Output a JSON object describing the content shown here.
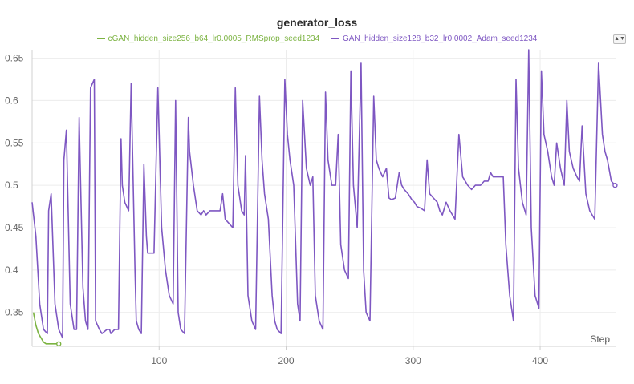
{
  "chart_data": {
    "type": "line",
    "title": "generator_loss",
    "xlabel": "Step",
    "ylabel": "",
    "xlim": [
      0,
      460
    ],
    "ylim": [
      0.31,
      0.66
    ],
    "xticks": [
      100,
      200,
      300,
      400
    ],
    "yticks": [
      0.35,
      0.4,
      0.45,
      0.5,
      0.55,
      0.6,
      0.65
    ],
    "grid": true,
    "legend_position": "top",
    "series": [
      {
        "name": "cGAN_hidden_size256_b64_lr0.0005_RMSprop_seed1234",
        "color": "#7cb342",
        "x": [
          1,
          3,
          5,
          7,
          9,
          11,
          13,
          15,
          17,
          19,
          21
        ],
        "y": [
          0.35,
          0.335,
          0.325,
          0.32,
          0.315,
          0.313,
          0.313,
          0.313,
          0.313,
          0.313,
          0.313
        ]
      },
      {
        "name": "GAN_hidden_size128_b32_lr0.0002_Adam_seed1234",
        "color": "#7e57c2",
        "x": [
          0,
          3,
          6,
          9,
          12,
          13,
          15,
          18,
          21,
          24,
          25,
          27,
          30,
          33,
          35,
          37,
          40,
          42,
          44,
          46,
          49,
          50,
          53,
          55,
          59,
          61,
          62,
          65,
          68,
          70,
          71,
          73,
          76,
          78,
          81,
          82,
          84,
          86,
          88,
          90,
          91,
          93,
          96,
          99,
          100,
          102,
          105,
          108,
          111,
          113,
          115,
          117,
          120,
          123,
          124,
          127,
          130,
          133,
          135,
          137,
          140,
          141,
          143,
          145,
          148,
          150,
          152,
          155,
          158,
          160,
          162,
          165,
          167,
          168,
          170,
          173,
          176,
          179,
          181,
          183,
          186,
          189,
          191,
          193,
          196,
          199,
          201,
          203,
          206,
          209,
          211,
          213,
          216,
          219,
          221,
          223,
          226,
          229,
          231,
          233,
          236,
          239,
          241,
          243,
          246,
          249,
          251,
          253,
          256,
          259,
          261,
          263,
          266,
          269,
          271,
          273,
          276,
          279,
          281,
          283,
          286,
          289,
          291,
          293,
          296,
          299,
          301,
          303,
          306,
          309,
          311,
          313,
          316,
          319,
          321,
          323,
          326,
          329,
          331,
          333,
          336,
          339,
          341,
          343,
          346,
          349,
          351,
          353,
          356,
          359,
          361,
          363,
          366,
          369,
          371,
          373,
          376,
          379,
          381,
          383,
          386,
          389,
          391,
          393,
          396,
          399,
          401,
          403,
          406,
          409,
          411,
          413,
          416,
          419,
          421,
          423,
          426,
          429,
          431,
          433,
          436,
          439,
          441,
          443,
          446,
          449,
          451,
          453,
          456,
          459
        ],
        "y": [
          0.48,
          0.44,
          0.36,
          0.33,
          0.325,
          0.47,
          0.49,
          0.36,
          0.33,
          0.32,
          0.53,
          0.565,
          0.36,
          0.33,
          0.33,
          0.58,
          0.38,
          0.34,
          0.33,
          0.615,
          0.625,
          0.34,
          0.33,
          0.325,
          0.33,
          0.33,
          0.325,
          0.33,
          0.33,
          0.555,
          0.5,
          0.48,
          0.47,
          0.62,
          0.4,
          0.34,
          0.33,
          0.325,
          0.525,
          0.44,
          0.42,
          0.42,
          0.42,
          0.615,
          0.56,
          0.45,
          0.4,
          0.37,
          0.36,
          0.6,
          0.35,
          0.33,
          0.325,
          0.58,
          0.54,
          0.5,
          0.47,
          0.465,
          0.47,
          0.465,
          0.47,
          0.47,
          0.47,
          0.47,
          0.47,
          0.49,
          0.46,
          0.455,
          0.45,
          0.615,
          0.5,
          0.47,
          0.465,
          0.535,
          0.37,
          0.34,
          0.33,
          0.605,
          0.53,
          0.49,
          0.46,
          0.37,
          0.34,
          0.33,
          0.325,
          0.625,
          0.56,
          0.53,
          0.5,
          0.36,
          0.34,
          0.6,
          0.52,
          0.5,
          0.51,
          0.37,
          0.34,
          0.33,
          0.61,
          0.53,
          0.5,
          0.5,
          0.56,
          0.43,
          0.4,
          0.39,
          0.635,
          0.5,
          0.45,
          0.645,
          0.4,
          0.35,
          0.34,
          0.605,
          0.53,
          0.52,
          0.51,
          0.52,
          0.485,
          0.483,
          0.485,
          0.515,
          0.5,
          0.495,
          0.49,
          0.483,
          0.48,
          0.475,
          0.473,
          0.47,
          0.53,
          0.49,
          0.485,
          0.48,
          0.47,
          0.465,
          0.48,
          0.47,
          0.465,
          0.46,
          0.56,
          0.51,
          0.505,
          0.5,
          0.495,
          0.5,
          0.5,
          0.5,
          0.505,
          0.505,
          0.515,
          0.51,
          0.51,
          0.51,
          0.51,
          0.43,
          0.37,
          0.34,
          0.625,
          0.52,
          0.48,
          0.465,
          0.66,
          0.45,
          0.37,
          0.355,
          0.635,
          0.56,
          0.54,
          0.51,
          0.5,
          0.55,
          0.52,
          0.5,
          0.6,
          0.54,
          0.52,
          0.51,
          0.505,
          0.57,
          0.49,
          0.47,
          0.465,
          0.46,
          0.645,
          0.56,
          0.54,
          0.53,
          0.505,
          0.5
        ]
      }
    ]
  }
}
